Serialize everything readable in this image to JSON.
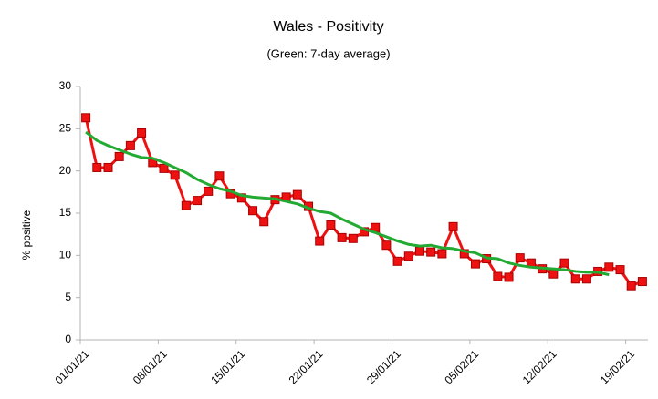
{
  "chart_data": {
    "type": "line",
    "title": "Wales - Positivity",
    "subtitle": "(Green: 7-day average)",
    "y_label": "% positive",
    "categories": [
      "01/01/21",
      null,
      null,
      null,
      null,
      null,
      null,
      "08/01/21",
      null,
      null,
      null,
      null,
      null,
      null,
      "15/01/21",
      null,
      null,
      null,
      null,
      null,
      null,
      "22/01/21",
      null,
      null,
      null,
      null,
      null,
      null,
      "29/01/21",
      null,
      null,
      null,
      null,
      null,
      null,
      "05/02/21",
      null,
      null,
      null,
      null,
      null,
      null,
      "12/02/21",
      null,
      null,
      null,
      null,
      null,
      null,
      "19/02/21",
      null
    ],
    "series": [
      {
        "color": "#ee1111",
        "values": [
          26.3,
          20.4,
          20.4,
          21.7,
          23.0,
          24.5,
          21.0,
          20.3,
          19.5,
          15.9,
          16.5,
          17.6,
          19.4,
          17.3,
          16.8,
          15.3,
          14.0,
          16.6,
          16.9,
          17.2,
          15.8,
          11.7,
          13.6,
          12.1,
          12.0,
          12.8,
          13.3,
          11.2,
          9.3,
          9.9,
          10.5,
          10.4,
          10.2,
          13.4,
          10.2,
          9.0,
          9.6,
          7.5,
          7.4,
          9.7,
          9.1,
          8.4,
          7.8,
          9.1,
          7.2,
          7.2,
          8.1,
          8.6,
          8.3,
          6.4,
          6.9
        ]
      },
      {
        "color": "#22aa33",
        "values": [
          24.6,
          23.6,
          23.0,
          22.5,
          22.0,
          21.6,
          21.5,
          21.0,
          20.4,
          19.8,
          19.0,
          18.4,
          17.9,
          17.6,
          17.1,
          16.9,
          16.8,
          16.7,
          16.4,
          16.1,
          15.6,
          15.2,
          15.0,
          14.3,
          13.7,
          13.1,
          12.7,
          12.2,
          11.7,
          11.3,
          11.1,
          11.2,
          10.9,
          10.8,
          10.5,
          10.3,
          9.7,
          9.6,
          9.1,
          8.8,
          8.6,
          8.5,
          8.4,
          8.3,
          8.1,
          8.0,
          8.0,
          7.7,
          null,
          null,
          null
        ]
      }
    ],
    "ylim": [
      0,
      30
    ],
    "yticks": [
      0,
      5,
      10,
      15,
      20,
      25,
      30
    ],
    "grid": false
  }
}
